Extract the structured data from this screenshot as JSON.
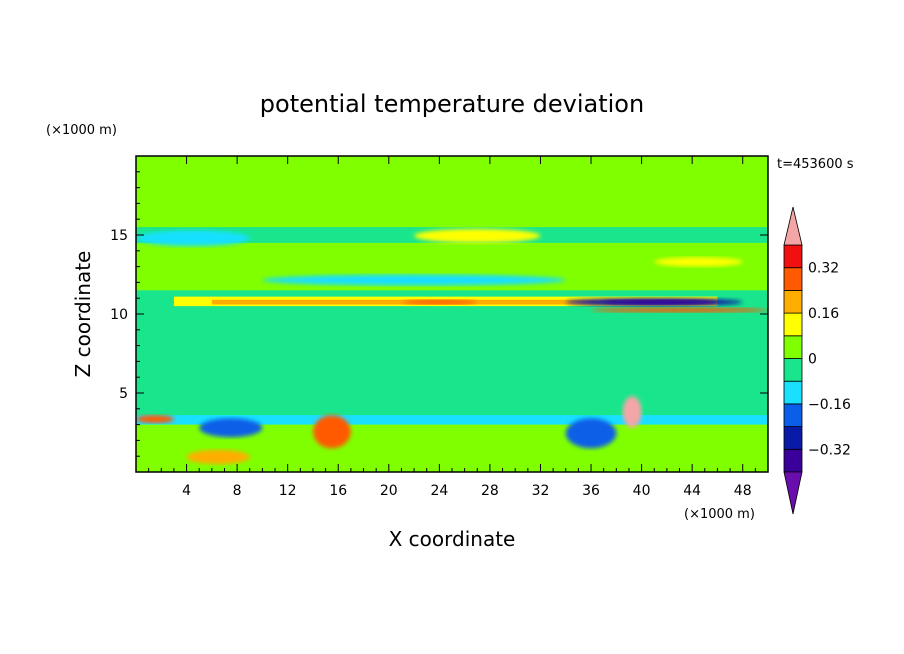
{
  "chart_data": {
    "type": "heatmap",
    "title": "potential temperature deviation",
    "xlabel": "X coordinate",
    "ylabel": "Z coordinate",
    "x_unit": "(×1000 m)",
    "y_unit": "(×1000 m)",
    "time_label": "t=453600 s",
    "xlim": [
      0,
      50
    ],
    "ylim": [
      0,
      20
    ],
    "x_ticks": [
      4,
      8,
      12,
      16,
      20,
      24,
      28,
      32,
      36,
      40,
      44,
      48
    ],
    "y_ticks": [
      5,
      10,
      15
    ],
    "colorbar": {
      "levels": [
        -0.4,
        -0.32,
        -0.24,
        -0.16,
        -0.08,
        0,
        0.08,
        0.16,
        0.24,
        0.32,
        0.4
      ],
      "labels": [
        {
          "value": 0.32,
          "text": "0.32"
        },
        {
          "value": 0.16,
          "text": "0.16"
        },
        {
          "value": 0,
          "text": "0"
        },
        {
          "value": -0.16,
          "text": "−0.16"
        },
        {
          "value": -0.32,
          "text": "−0.32"
        }
      ],
      "colors": [
        "#6a0dad",
        "#3a0099",
        "#0a1aa8",
        "#0a5ee8",
        "#19e0ff",
        "#19e68c",
        "#80ff00",
        "#ffff00",
        "#ffae00",
        "#ff5a00",
        "#f01010",
        "#f4a6a6"
      ]
    },
    "features": [
      {
        "kind": "background",
        "x": [
          0,
          50
        ],
        "z": [
          0,
          20
        ],
        "level": "#19e68c"
      },
      {
        "kind": "band",
        "x": [
          0,
          50
        ],
        "z": [
          15.5,
          20
        ],
        "level": "#80ff00"
      },
      {
        "kind": "band",
        "x": [
          0,
          50
        ],
        "z": [
          11.5,
          14.5
        ],
        "level": "#80ff00"
      },
      {
        "kind": "band",
        "x": [
          3,
          46
        ],
        "z": [
          10.5,
          11.1
        ],
        "level": "#ffff00"
      },
      {
        "kind": "band",
        "x": [
          6,
          38
        ],
        "z": [
          10.6,
          10.9
        ],
        "level": "#ffae00"
      },
      {
        "kind": "blob",
        "x": [
          21,
          27
        ],
        "z": [
          10.6,
          10.9
        ],
        "level": "#ff5a00"
      },
      {
        "kind": "blob",
        "x": [
          34,
          48
        ],
        "z": [
          10.5,
          11.0
        ],
        "level": "#0a1aa8"
      },
      {
        "kind": "blob",
        "x": [
          37,
          46
        ],
        "z": [
          10.6,
          10.9
        ],
        "level": "#3a0099"
      },
      {
        "kind": "blob",
        "x": [
          36,
          50
        ],
        "z": [
          10.1,
          10.4
        ],
        "level": "#ff5a00"
      },
      {
        "kind": "blob",
        "x": [
          10,
          34
        ],
        "z": [
          11.8,
          12.5
        ],
        "level": "#19e0ff"
      },
      {
        "kind": "blob",
        "x": [
          0,
          9
        ],
        "z": [
          14.3,
          15.3
        ],
        "level": "#19e0ff"
      },
      {
        "kind": "blob",
        "x": [
          22,
          32
        ],
        "z": [
          14.5,
          15.4
        ],
        "level": "#ffff00"
      },
      {
        "kind": "blob",
        "x": [
          41,
          48
        ],
        "z": [
          13.0,
          13.6
        ],
        "level": "#ffff00"
      },
      {
        "kind": "band",
        "x": [
          0,
          50
        ],
        "z": [
          0,
          3.5
        ],
        "level": "#80ff00"
      },
      {
        "kind": "band",
        "x": [
          0,
          50
        ],
        "z": [
          3.0,
          3.6
        ],
        "level": "#19e0ff"
      },
      {
        "kind": "blob",
        "x": [
          34,
          38
        ],
        "z": [
          1.5,
          3.4
        ],
        "level": "#0a5ee8"
      },
      {
        "kind": "blob",
        "x": [
          5,
          10
        ],
        "z": [
          2.2,
          3.4
        ],
        "level": "#0a5ee8"
      },
      {
        "kind": "blob",
        "x": [
          4,
          9
        ],
        "z": [
          0.5,
          1.4
        ],
        "level": "#ffae00"
      },
      {
        "kind": "blob",
        "x": [
          14,
          17
        ],
        "z": [
          1.5,
          3.6
        ],
        "level": "#ff5a00"
      },
      {
        "kind": "blob",
        "x": [
          38.5,
          40
        ],
        "z": [
          2.8,
          4.8
        ],
        "level": "#f4a6a6"
      },
      {
        "kind": "blob",
        "x": [
          0,
          3
        ],
        "z": [
          3.1,
          3.6
        ],
        "level": "#ff5a00"
      }
    ]
  }
}
